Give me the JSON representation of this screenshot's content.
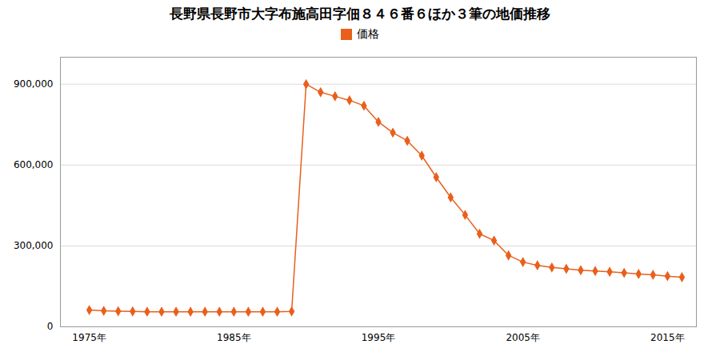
{
  "chart_data": {
    "type": "line",
    "title": "長野県長野市大字布施高田字佃８４６番６ほか３筆の地価推移",
    "x": [
      1975,
      1976,
      1977,
      1978,
      1979,
      1980,
      1981,
      1982,
      1983,
      1984,
      1985,
      1986,
      1987,
      1988,
      1989,
      1990,
      1991,
      1992,
      1993,
      1994,
      1995,
      1996,
      1997,
      1998,
      1999,
      2000,
      2001,
      2002,
      2003,
      2004,
      2005,
      2006,
      2007,
      2008,
      2009,
      2010,
      2011,
      2012,
      2013,
      2014,
      2015,
      2016
    ],
    "series": [
      {
        "name": "価格",
        "color": "#e8601c",
        "marker": "diamond",
        "values": [
          62000,
          59000,
          58000,
          57000,
          56000,
          56000,
          56000,
          56000,
          56000,
          56000,
          56000,
          56000,
          56000,
          56000,
          57000,
          900000,
          870000,
          855000,
          840000,
          820000,
          760000,
          720000,
          690000,
          635000,
          555000,
          480000,
          415000,
          345000,
          320000,
          265000,
          240000,
          228000,
          220000,
          215000,
          210000,
          207000,
          204000,
          200000,
          196000,
          193000,
          188000,
          184000
        ]
      }
    ],
    "xlim": [
      1973,
      2017
    ],
    "xticks": [
      {
        "value": 1975,
        "label": "1975年"
      },
      {
        "value": 1985,
        "label": "1985年"
      },
      {
        "value": 1995,
        "label": "1995年"
      },
      {
        "value": 2005,
        "label": "2005年"
      },
      {
        "value": 2015,
        "label": "2015年"
      }
    ],
    "ylim": [
      0,
      1000000
    ],
    "yticks": [
      0,
      {
        "value": 300000,
        "label": "300,000"
      },
      {
        "value": 600000,
        "label": "600,000"
      },
      {
        "value": 900000,
        "label": "900,000"
      }
    ],
    "grid": true,
    "legend": "top"
  }
}
